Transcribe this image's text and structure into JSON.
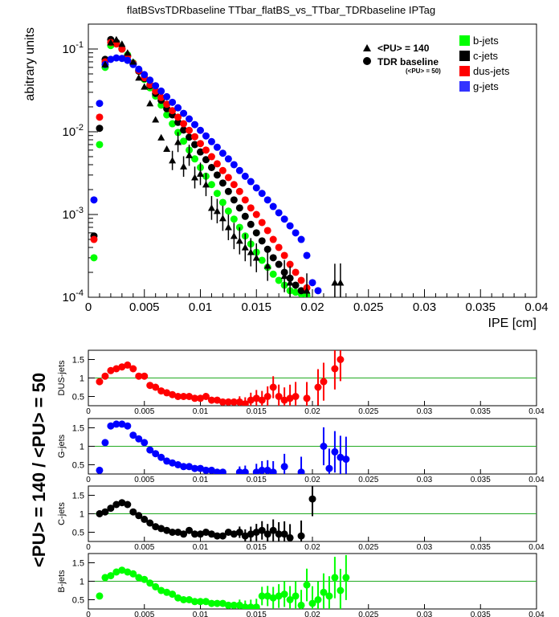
{
  "figure": {
    "title": "flatBSvsTDRbaseline TTbar_flatBS_vs_TTbar_TDRbaseline IPTag",
    "side_label": "<PU> = 140 / <PU> = 50"
  },
  "legend_markers": {
    "pu140": "<PU> = 140",
    "tdr": "TDR baseline",
    "tdr_sub": "(<PU> = 50)"
  },
  "legend_flavours": [
    {
      "label": "b-jets",
      "color": "#00ff00"
    },
    {
      "label": "c-jets",
      "color": "#000000"
    },
    {
      "label": "dus-jets",
      "color": "#ff0000"
    },
    {
      "label": "g-jets",
      "color": "#3333ff"
    }
  ],
  "chart_data": [
    {
      "type": "scatter",
      "title": "flatBSvsTDRbaseline TTbar_flatBS_vs_TTbar_TDRbaseline IPTag",
      "xlabel": "IPE [cm]",
      "ylabel": "abitrary units",
      "xlim": [
        0,
        0.04
      ],
      "ylim": [
        0.0001,
        0.2
      ],
      "yscale": "log",
      "grid": false,
      "legend_position": "top-right",
      "xticks": [
        "0",
        "0.005",
        "0.01",
        "0.015",
        "0.02",
        "0.025",
        "0.03",
        "0.035",
        "0.04"
      ],
      "yticks": [
        "10^-4",
        "10^-3",
        "10^-2",
        "10^-1"
      ],
      "series": [
        {
          "name": "b-jets",
          "marker": "circle",
          "color": "#00ff00",
          "x": [
            0.0005,
            0.001,
            0.0015,
            0.002,
            0.0025,
            0.003,
            0.0035,
            0.004,
            0.0045,
            0.005,
            0.0055,
            0.006,
            0.0065,
            0.007,
            0.0075,
            0.008,
            0.0085,
            0.009,
            0.0095,
            0.01,
            0.0105,
            0.011,
            0.0115,
            0.012,
            0.0125,
            0.013,
            0.0135,
            0.014,
            0.0145,
            0.015,
            0.0155,
            0.016,
            0.0165,
            0.017,
            0.0175,
            0.018,
            0.0185,
            0.019,
            0.0195
          ],
          "y": [
            0.0003,
            0.007,
            0.06,
            0.11,
            0.12,
            0.1,
            0.085,
            0.068,
            0.055,
            0.043,
            0.034,
            0.027,
            0.021,
            0.016,
            0.0125,
            0.0098,
            0.0077,
            0.006,
            0.0047,
            0.0037,
            0.0029,
            0.0023,
            0.0018,
            0.0014,
            0.0011,
            0.00088,
            0.0007,
            0.00055,
            0.00044,
            0.00035,
            0.00028,
            0.00023,
            0.00019,
            0.00016,
            0.00014,
            0.00012,
            0.000115,
            0.00011,
            0.000105
          ]
        },
        {
          "name": "c-jets",
          "marker": "circle",
          "color": "#000000",
          "x": [
            0.0005,
            0.001,
            0.0015,
            0.002,
            0.0025,
            0.003,
            0.0035,
            0.004,
            0.0045,
            0.005,
            0.0055,
            0.006,
            0.0065,
            0.007,
            0.0075,
            0.008,
            0.0085,
            0.009,
            0.0095,
            0.01,
            0.0105,
            0.011,
            0.0115,
            0.012,
            0.0125,
            0.013,
            0.0135,
            0.014,
            0.0145,
            0.015,
            0.0155,
            0.016,
            0.0165,
            0.017,
            0.0175,
            0.018,
            0.0185,
            0.019
          ],
          "y": [
            0.00055,
            0.011,
            0.075,
            0.13,
            0.12,
            0.1,
            0.082,
            0.066,
            0.054,
            0.044,
            0.036,
            0.029,
            0.024,
            0.019,
            0.016,
            0.013,
            0.0105,
            0.0086,
            0.007,
            0.0057,
            0.0046,
            0.0037,
            0.003,
            0.0024,
            0.0019,
            0.0015,
            0.0012,
            0.00095,
            0.00076,
            0.0006,
            0.00048,
            0.00038,
            0.0003,
            0.00025,
            0.0002,
            0.00017,
            0.00014,
            0.00012
          ]
        },
        {
          "name": "dus-jets",
          "marker": "circle",
          "color": "#ff0000",
          "x": [
            0.0005,
            0.001,
            0.0015,
            0.002,
            0.0025,
            0.003,
            0.0035,
            0.004,
            0.0045,
            0.005,
            0.0055,
            0.006,
            0.0065,
            0.007,
            0.0075,
            0.008,
            0.0085,
            0.009,
            0.0095,
            0.01,
            0.0105,
            0.011,
            0.0115,
            0.012,
            0.0125,
            0.013,
            0.0135,
            0.014,
            0.0145,
            0.015,
            0.0155,
            0.016,
            0.0165,
            0.017,
            0.0175,
            0.018,
            0.0185,
            0.019,
            0.0195
          ],
          "y": [
            0.0005,
            0.015,
            0.07,
            0.12,
            0.115,
            0.1,
            0.082,
            0.067,
            0.055,
            0.045,
            0.037,
            0.031,
            0.026,
            0.0215,
            0.018,
            0.015,
            0.0125,
            0.0104,
            0.0087,
            0.0072,
            0.006,
            0.005,
            0.0041,
            0.0034,
            0.0028,
            0.0023,
            0.0019,
            0.0015,
            0.0012,
            0.001,
            0.0008,
            0.00064,
            0.0005,
            0.0004,
            0.00032,
            0.00025,
            0.0002,
            0.00016,
            0.00013
          ]
        },
        {
          "name": "g-jets",
          "marker": "circle",
          "color": "#0000ff",
          "x": [
            0.0005,
            0.001,
            0.0015,
            0.002,
            0.0025,
            0.003,
            0.0035,
            0.004,
            0.0045,
            0.005,
            0.0055,
            0.006,
            0.0065,
            0.007,
            0.0075,
            0.008,
            0.0085,
            0.009,
            0.0095,
            0.01,
            0.0105,
            0.011,
            0.0115,
            0.012,
            0.0125,
            0.013,
            0.0135,
            0.014,
            0.0145,
            0.015,
            0.0155,
            0.016,
            0.0165,
            0.017,
            0.0175,
            0.018,
            0.0185,
            0.019,
            0.0195,
            0.02,
            0.0205
          ],
          "y": [
            0.0015,
            0.022,
            0.065,
            0.075,
            0.078,
            0.077,
            0.073,
            0.065,
            0.057,
            0.049,
            0.042,
            0.036,
            0.031,
            0.0265,
            0.0227,
            0.0195,
            0.0167,
            0.0143,
            0.0122,
            0.0104,
            0.0089,
            0.0076,
            0.0065,
            0.0055,
            0.0047,
            0.004,
            0.0034,
            0.0029,
            0.0025,
            0.0021,
            0.0018,
            0.0015,
            0.00125,
            0.00105,
            0.00088,
            0.00073,
            0.0006,
            0.0005,
            0.00032,
            0.00015,
            0.00012
          ]
        },
        {
          "name": "<PU> = 140",
          "marker": "triangle",
          "color": "#000000",
          "x": [
            0.0015,
            0.002,
            0.0025,
            0.003,
            0.0035,
            0.004,
            0.0045,
            0.005,
            0.0055,
            0.006,
            0.0065,
            0.007,
            0.0075,
            0.008,
            0.0085,
            0.009,
            0.0095,
            0.01,
            0.0105,
            0.011,
            0.0115,
            0.012,
            0.0125,
            0.013,
            0.0135,
            0.014,
            0.0145,
            0.015,
            0.016,
            0.0175,
            0.018,
            0.0195,
            0.022,
            0.0225
          ],
          "y": [
            0.065,
            0.12,
            0.13,
            0.115,
            0.09,
            0.07,
            0.045,
            0.035,
            0.022,
            0.014,
            0.0085,
            0.0062,
            0.0045,
            0.0075,
            0.0038,
            0.0052,
            0.0028,
            0.0031,
            0.0023,
            0.0012,
            0.0011,
            0.0009,
            0.0007,
            0.00055,
            0.00048,
            0.0004,
            0.00035,
            0.0003,
            0.00024,
            0.00018,
            0.00015,
            0.00012,
            0.00015,
            0.00015
          ]
        },
        {
          "name": "TDR baseline",
          "marker": "circle",
          "color": "#000000",
          "x": [],
          "y": []
        }
      ]
    },
    {
      "type": "scatter",
      "ylabel": "DUS-jets",
      "xlim": [
        0,
        0.04
      ],
      "ylim": [
        0.25,
        1.75
      ],
      "reference_line": 1,
      "color": "#ff0000",
      "xticks": [
        "0",
        "0.005",
        "0.01",
        "0.015",
        "0.02",
        "0.025",
        "0.03",
        "0.035",
        "0.04"
      ],
      "yticks": [
        "0.5",
        "1",
        "1.5"
      ],
      "x": [
        0.001,
        0.0015,
        0.002,
        0.0025,
        0.003,
        0.0035,
        0.004,
        0.0045,
        0.005,
        0.0055,
        0.006,
        0.0065,
        0.007,
        0.0075,
        0.008,
        0.0085,
        0.009,
        0.0095,
        0.01,
        0.0105,
        0.011,
        0.0115,
        0.012,
        0.0125,
        0.013,
        0.0135,
        0.014,
        0.0145,
        0.015,
        0.0155,
        0.016,
        0.0165,
        0.017,
        0.0175,
        0.018,
        0.0185,
        0.0195,
        0.0205,
        0.021,
        0.022,
        0.0225
      ],
      "y": [
        0.9,
        1.05,
        1.2,
        1.25,
        1.3,
        1.35,
        1.25,
        1.05,
        1.05,
        0.8,
        0.75,
        0.65,
        0.6,
        0.55,
        0.5,
        0.5,
        0.5,
        0.45,
        0.45,
        0.5,
        0.4,
        0.4,
        0.35,
        0.35,
        0.35,
        0.35,
        0.3,
        0.4,
        0.45,
        0.4,
        0.5,
        0.75,
        0.5,
        0.4,
        0.45,
        0.5,
        0.45,
        0.75,
        0.9,
        1.25,
        1.5
      ]
    },
    {
      "type": "scatter",
      "ylabel": "G-jets",
      "xlim": [
        0,
        0.04
      ],
      "ylim": [
        0.25,
        1.75
      ],
      "reference_line": 1,
      "color": "#0000ff",
      "xticks": [
        "0",
        "0.005",
        "0.01",
        "0.015",
        "0.02",
        "0.025",
        "0.03",
        "0.035",
        "0.04"
      ],
      "yticks": [
        "0.5",
        "1",
        "1.5"
      ],
      "x": [
        0.001,
        0.0015,
        0.002,
        0.0025,
        0.003,
        0.0035,
        0.004,
        0.0045,
        0.005,
        0.0055,
        0.006,
        0.0065,
        0.007,
        0.0075,
        0.008,
        0.0085,
        0.009,
        0.0095,
        0.01,
        0.0105,
        0.011,
        0.0115,
        0.012,
        0.0135,
        0.014,
        0.015,
        0.0155,
        0.016,
        0.0165,
        0.0175,
        0.019,
        0.021,
        0.0215,
        0.022,
        0.0225,
        0.023
      ],
      "y": [
        0.35,
        1.1,
        1.55,
        1.6,
        1.6,
        1.55,
        1.3,
        1.2,
        1.1,
        0.9,
        0.8,
        0.7,
        0.6,
        0.55,
        0.5,
        0.45,
        0.45,
        0.4,
        0.4,
        0.35,
        0.35,
        0.3,
        0.3,
        0.3,
        0.3,
        0.3,
        0.35,
        0.35,
        0.3,
        0.45,
        0.3,
        1.0,
        0.4,
        0.85,
        0.7,
        0.65
      ]
    },
    {
      "type": "scatter",
      "ylabel": "C-jets",
      "xlim": [
        0,
        0.04
      ],
      "ylim": [
        0.25,
        1.75
      ],
      "reference_line": 1,
      "color": "#000000",
      "xticks": [
        "0",
        "0.005",
        "0.01",
        "0.015",
        "0.02",
        "0.025",
        "0.03",
        "0.035",
        "0.04"
      ],
      "yticks": [
        "0.5",
        "1",
        "1.5"
      ],
      "x": [
        0.001,
        0.0015,
        0.002,
        0.0025,
        0.003,
        0.0035,
        0.004,
        0.0045,
        0.005,
        0.0055,
        0.006,
        0.0065,
        0.007,
        0.0075,
        0.008,
        0.0085,
        0.009,
        0.0095,
        0.01,
        0.0105,
        0.011,
        0.0115,
        0.012,
        0.0125,
        0.013,
        0.0135,
        0.014,
        0.0145,
        0.015,
        0.0155,
        0.016,
        0.0165,
        0.017,
        0.0175,
        0.018,
        0.019,
        0.02
      ],
      "y": [
        1.0,
        1.05,
        1.15,
        1.25,
        1.3,
        1.25,
        1.05,
        0.95,
        0.85,
        0.75,
        0.65,
        0.6,
        0.55,
        0.5,
        0.5,
        0.45,
        0.55,
        0.45,
        0.45,
        0.5,
        0.45,
        0.4,
        0.4,
        0.5,
        0.45,
        0.5,
        0.4,
        0.45,
        0.5,
        0.55,
        0.45,
        0.55,
        0.45,
        0.45,
        0.35,
        0.4,
        1.4
      ]
    },
    {
      "type": "scatter",
      "ylabel": "B-jets",
      "xlim": [
        0,
        0.04
      ],
      "ylim": [
        0.25,
        1.75
      ],
      "reference_line": 1,
      "color": "#00ff00",
      "xticks": [
        "0",
        "0.005",
        "0.01",
        "0.015",
        "0.02",
        "0.025",
        "0.03",
        "0.035",
        "0.04"
      ],
      "yticks": [
        "0.5",
        "1",
        "1.5"
      ],
      "x": [
        0.001,
        0.0015,
        0.002,
        0.0025,
        0.003,
        0.0035,
        0.004,
        0.0045,
        0.005,
        0.0055,
        0.006,
        0.0065,
        0.007,
        0.0075,
        0.008,
        0.0085,
        0.009,
        0.0095,
        0.01,
        0.0105,
        0.011,
        0.0115,
        0.012,
        0.0125,
        0.013,
        0.0135,
        0.014,
        0.0145,
        0.015,
        0.0155,
        0.016,
        0.0165,
        0.017,
        0.0175,
        0.018,
        0.0185,
        0.019,
        0.0195,
        0.02,
        0.0205,
        0.021,
        0.0215,
        0.022,
        0.0225,
        0.023
      ],
      "y": [
        0.6,
        1.1,
        1.15,
        1.25,
        1.3,
        1.25,
        1.2,
        1.1,
        1.05,
        0.95,
        0.85,
        0.75,
        0.7,
        0.65,
        0.55,
        0.5,
        0.5,
        0.45,
        0.45,
        0.45,
        0.4,
        0.4,
        0.4,
        0.35,
        0.35,
        0.35,
        0.3,
        0.3,
        0.3,
        0.6,
        0.6,
        0.55,
        0.6,
        0.65,
        0.5,
        0.6,
        0.35,
        0.9,
        0.4,
        0.5,
        0.7,
        0.6,
        1.1,
        0.75,
        1.1
      ]
    }
  ]
}
